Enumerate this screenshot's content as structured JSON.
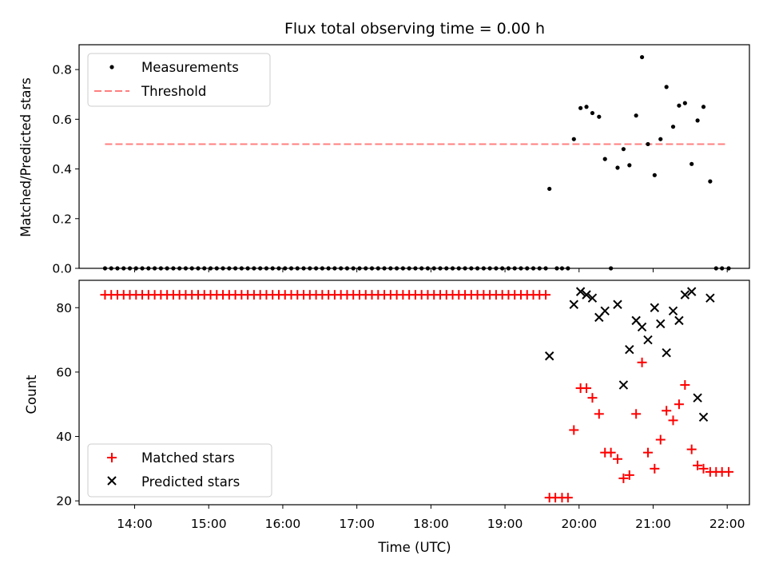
{
  "chart_data": [
    {
      "type": "scatter",
      "title": "Flux total observing time = 0.00 h",
      "ylabel": "Matched/Predicted stars",
      "xlabel": "",
      "ylim": [
        0,
        0.9
      ],
      "xlim": [
        13.25,
        22.3
      ],
      "yticks": [
        0,
        0.2,
        0.4,
        0.6,
        0.8
      ],
      "ytick_labels": [
        "0.0",
        "0.2",
        "0.4",
        "0.6",
        "0.8"
      ],
      "xtick_labels_shown": false,
      "legend_position": "upper-left",
      "series": [
        {
          "name": "Measurements",
          "marker": "dot",
          "color": "#000000",
          "points": [
            [
              19.6,
              0.32
            ],
            [
              19.93,
              0.52
            ],
            [
              20.02,
              0.645
            ],
            [
              20.1,
              0.65
            ],
            [
              20.18,
              0.625
            ],
            [
              20.27,
              0.61
            ],
            [
              20.35,
              0.44
            ],
            [
              20.52,
              0.405
            ],
            [
              20.6,
              0.48
            ],
            [
              20.68,
              0.415
            ],
            [
              20.77,
              0.615
            ],
            [
              20.85,
              0.85
            ],
            [
              20.93,
              0.5
            ],
            [
              21.02,
              0.375
            ],
            [
              21.1,
              0.52
            ],
            [
              21.18,
              0.73
            ],
            [
              21.27,
              0.57
            ],
            [
              21.35,
              0.655
            ],
            [
              21.43,
              0.665
            ],
            [
              21.52,
              0.42
            ],
            [
              21.6,
              0.595
            ],
            [
              21.68,
              0.65
            ],
            [
              21.77,
              0.35
            ],
            [
              20.43,
              0.0
            ],
            [
              19.7,
              0.0
            ],
            [
              19.77,
              0.0
            ],
            [
              19.85,
              0.0
            ],
            [
              21.85,
              0.0
            ],
            [
              21.93,
              0.0
            ],
            [
              22.02,
              0.0
            ]
          ],
          "zero_run": {
            "start": 13.6,
            "end": 19.55,
            "count": 72,
            "value": 0.0
          }
        },
        {
          "name": "Threshold",
          "type": "line",
          "style": "dashed",
          "color": "#ff7f7f",
          "x": [
            13.6,
            22.0
          ],
          "y": [
            0.5,
            0.5
          ]
        }
      ]
    },
    {
      "type": "scatter",
      "title": "",
      "ylabel": "Count",
      "xlabel": "Time (UTC)",
      "ylim": [
        18.8,
        88.5
      ],
      "xlim": [
        13.25,
        22.3
      ],
      "yticks": [
        20,
        40,
        60,
        80
      ],
      "ytick_labels": [
        "20",
        "40",
        "60",
        "80"
      ],
      "xticks": [
        14,
        15,
        16,
        17,
        18,
        19,
        20,
        21,
        22
      ],
      "xtick_labels": [
        "14:00",
        "15:00",
        "16:00",
        "17:00",
        "18:00",
        "19:00",
        "20:00",
        "21:00",
        "22:00"
      ],
      "legend_position": "lower-left",
      "series": [
        {
          "name": "Matched stars",
          "marker": "plus",
          "color": "#ff0000",
          "points": [
            [
              19.6,
              21
            ],
            [
              19.68,
              21
            ],
            [
              19.77,
              21
            ],
            [
              19.85,
              21
            ],
            [
              19.93,
              42
            ],
            [
              20.02,
              55
            ],
            [
              20.1,
              55
            ],
            [
              20.18,
              52
            ],
            [
              20.27,
              47
            ],
            [
              20.35,
              35
            ],
            [
              20.43,
              35
            ],
            [
              20.52,
              33
            ],
            [
              20.6,
              27
            ],
            [
              20.68,
              28
            ],
            [
              20.77,
              47
            ],
            [
              20.85,
              63
            ],
            [
              20.93,
              35
            ],
            [
              21.02,
              30
            ],
            [
              21.1,
              39
            ],
            [
              21.18,
              48
            ],
            [
              21.27,
              45
            ],
            [
              21.35,
              50
            ],
            [
              21.43,
              56
            ],
            [
              21.52,
              36
            ],
            [
              21.6,
              31
            ],
            [
              21.68,
              30
            ],
            [
              21.77,
              29
            ],
            [
              21.85,
              29
            ],
            [
              21.93,
              29
            ],
            [
              22.02,
              29
            ]
          ],
          "constant_run": {
            "start": 13.6,
            "end": 19.55,
            "count": 72,
            "value": 84
          }
        },
        {
          "name": "Predicted stars",
          "marker": "x",
          "color": "#000000",
          "points": [
            [
              19.6,
              65
            ],
            [
              19.93,
              81
            ],
            [
              20.02,
              85
            ],
            [
              20.1,
              84
            ],
            [
              20.18,
              83
            ],
            [
              20.27,
              77
            ],
            [
              20.35,
              79
            ],
            [
              20.52,
              81
            ],
            [
              20.6,
              56
            ],
            [
              20.68,
              67
            ],
            [
              20.77,
              76
            ],
            [
              20.85,
              74
            ],
            [
              20.93,
              70
            ],
            [
              21.02,
              80
            ],
            [
              21.1,
              75
            ],
            [
              21.18,
              66
            ],
            [
              21.27,
              79
            ],
            [
              21.35,
              76
            ],
            [
              21.43,
              84
            ],
            [
              21.52,
              85
            ],
            [
              21.6,
              52
            ],
            [
              21.68,
              46
            ],
            [
              21.77,
              83
            ]
          ]
        }
      ]
    }
  ]
}
